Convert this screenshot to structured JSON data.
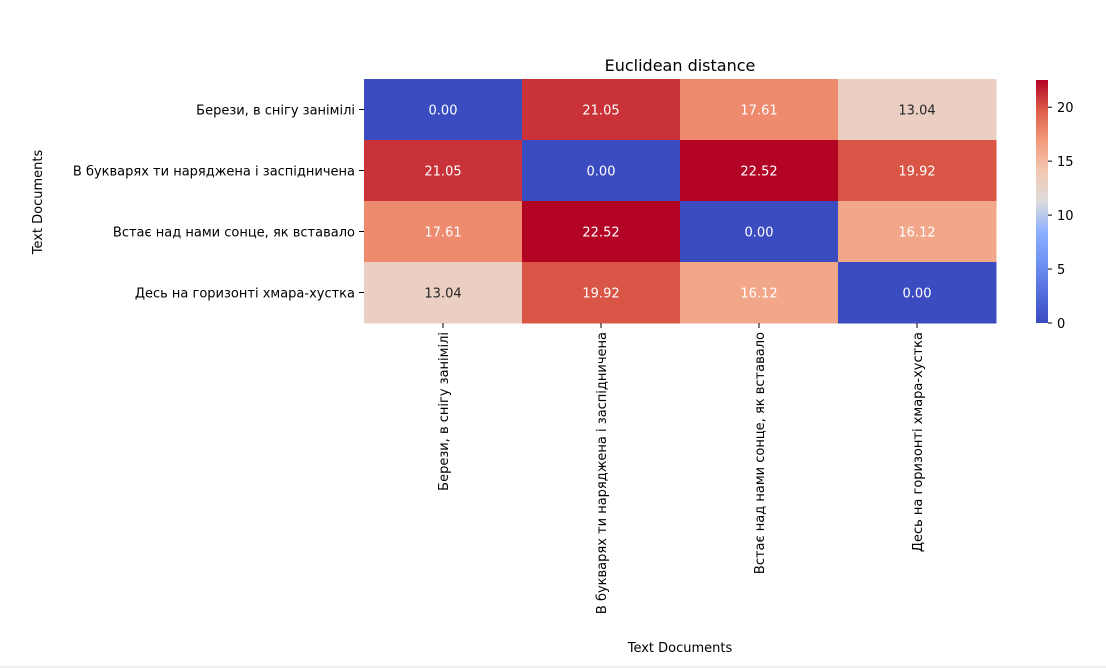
{
  "chart_data": {
    "type": "heatmap",
    "title": "Euclidean distance",
    "xlabel": "Text Documents",
    "ylabel": "Text Documents",
    "row_labels": [
      "Берези, в снігу занімілі",
      "В букварях ти наряджена і заспідничена",
      "Встає над нами сонце, як вставало",
      "Десь на горизонті хмара-хустка"
    ],
    "col_labels": [
      "Берези, в снігу занімілі",
      "В букварях ти наряджена і заспідничена",
      "Встає над нами сонце, як вставало",
      "Десь на горизонті хмара-хустка"
    ],
    "values": [
      [
        0.0,
        21.05,
        17.61,
        13.04
      ],
      [
        21.05,
        0.0,
        22.52,
        19.92
      ],
      [
        17.61,
        22.52,
        0.0,
        16.12
      ],
      [
        13.04,
        19.92,
        16.12,
        0.0
      ]
    ],
    "value_labels": [
      [
        "0.00",
        "21.05",
        "17.61",
        "13.04"
      ],
      [
        "21.05",
        "0.00",
        "22.52",
        "19.92"
      ],
      [
        "17.61",
        "22.52",
        "0.00",
        "16.12"
      ],
      [
        "13.04",
        "19.92",
        "16.12",
        "0.00"
      ]
    ],
    "colormap": "coolwarm",
    "vmin": 0,
    "vmax": 22.52,
    "colorbar_ticks": [
      "0",
      "5",
      "10",
      "15",
      "20"
    ],
    "colorbar_tick_values": [
      0,
      5,
      10,
      15,
      20
    ],
    "text_color": "#ffffff",
    "text_color_light_cells": "#262626"
  }
}
